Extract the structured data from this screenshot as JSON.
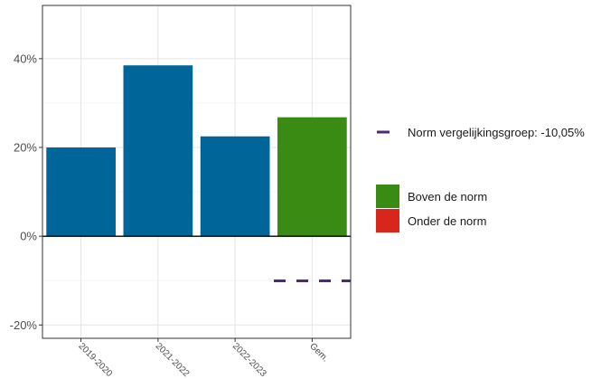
{
  "chart_data": {
    "type": "bar",
    "categories": [
      "2019-2020",
      "2021-2022",
      "2022-2023",
      "Gem."
    ],
    "values": [
      20.0,
      38.5,
      22.5,
      26.8
    ],
    "bar_status": [
      "unknown",
      "unknown",
      "unknown",
      "boven"
    ],
    "norm_value": -10.05,
    "norm_applies_to": "Gem.",
    "ylim": [
      -23,
      52
    ],
    "yticks": [
      -20,
      0,
      20,
      40
    ],
    "ytick_labels": [
      "-20%",
      "0%",
      "20%",
      "40%"
    ],
    "grid": true,
    "legend_position": "right",
    "legend": {
      "norm_label": "Norm vergelijkingsgroep: -10,05%",
      "above_label": "Boven de norm",
      "below_label": "Onder de norm"
    },
    "colors": {
      "bar_default": "#006699",
      "above": "#3a8b13",
      "below": "#d9261c",
      "norm": "#4b2a78",
      "grid": "#e5e5e5",
      "panel_border": "#333333"
    }
  }
}
